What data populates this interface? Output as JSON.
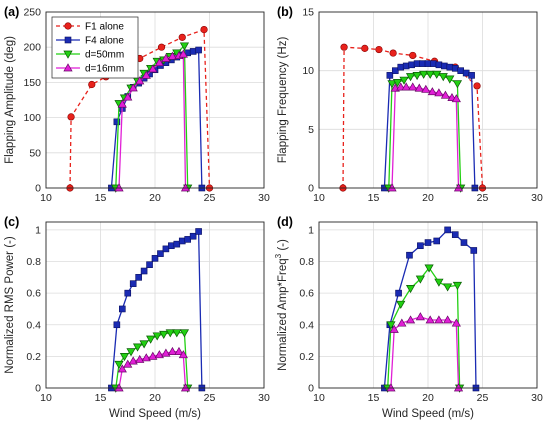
{
  "colors": {
    "F1 alone": "#e8221c",
    "F4 alone": "#1a2bb3",
    "d=50mm": "#22d012",
    "d=16mm": "#e11fd6"
  },
  "chart_data": [
    {
      "panel": "(a)",
      "type": "line",
      "xlabel": "",
      "ylabel": "Flapping Amplitude (deg)",
      "xlim": [
        10,
        30
      ],
      "ylim": [
        0,
        250
      ],
      "xticks": [
        "10",
        "15",
        "20",
        "25",
        "30"
      ],
      "yticks": [
        "0",
        "50",
        "100",
        "150",
        "200",
        "250"
      ],
      "grid": true,
      "legend": {
        "placement": "top-left",
        "entries": [
          "F1 alone",
          "F4 alone",
          "d=50mm",
          "d=16mm"
        ]
      },
      "series": [
        {
          "name": "F1 alone",
          "x": [
            12.2,
            12.3,
            14.2,
            15.5,
            16.8,
            18.6,
            20.6,
            22.5,
            24.5,
            25.0
          ],
          "y": [
            0,
            101,
            147,
            158,
            168,
            184,
            200,
            214,
            225,
            0
          ]
        },
        {
          "name": "F4 alone",
          "x": [
            16.0,
            16.5,
            17.0,
            17.5,
            18.0,
            18.5,
            19.0,
            19.5,
            20.0,
            20.5,
            21.0,
            21.5,
            22.0,
            22.5,
            23.0,
            23.5,
            24.0,
            24.3
          ],
          "y": [
            0,
            94,
            113,
            130,
            143,
            149,
            156,
            162,
            168,
            174,
            178,
            182,
            186,
            189,
            192,
            194,
            196,
            0
          ]
        },
        {
          "name": "d=50mm",
          "x": [
            16.4,
            16.7,
            17.2,
            17.8,
            18.4,
            19.0,
            19.6,
            20.2,
            20.8,
            21.4,
            22.0,
            22.7,
            23.0
          ],
          "y": [
            0,
            120,
            128,
            142,
            152,
            163,
            170,
            180,
            182,
            187,
            192,
            202,
            0
          ]
        },
        {
          "name": "d=16mm",
          "x": [
            16.7,
            17.0,
            17.5,
            18.0,
            18.6,
            19.2,
            19.8,
            20.4,
            21.0,
            21.6,
            22.2,
            22.6,
            22.8
          ],
          "y": [
            0,
            119,
            129,
            142,
            152,
            160,
            169,
            178,
            184,
            187,
            188,
            190,
            0
          ]
        }
      ]
    },
    {
      "panel": "(b)",
      "type": "line",
      "xlabel": "",
      "ylabel": "Flapping Frequency (Hz)",
      "xlim": [
        10,
        30
      ],
      "ylim": [
        0,
        15
      ],
      "xticks": [
        "10",
        "15",
        "20",
        "25",
        "30"
      ],
      "yticks": [
        "0",
        "5",
        "10",
        "15"
      ],
      "grid": true,
      "series": [
        {
          "name": "F1 alone",
          "x": [
            12.2,
            12.3,
            14.2,
            15.5,
            16.8,
            18.6,
            20.6,
            22.5,
            24.5,
            25.0
          ],
          "y": [
            0,
            12.0,
            11.9,
            11.8,
            11.5,
            11.3,
            10.8,
            10.3,
            8.7,
            0
          ]
        },
        {
          "name": "F4 alone",
          "x": [
            16.0,
            16.5,
            17.0,
            17.5,
            18.0,
            18.5,
            19.0,
            19.5,
            20.0,
            20.5,
            21.0,
            21.5,
            22.0,
            22.5,
            23.0,
            23.5,
            24.0,
            24.3
          ],
          "y": [
            0,
            9.6,
            10.0,
            10.3,
            10.4,
            10.5,
            10.6,
            10.6,
            10.6,
            10.6,
            10.5,
            10.4,
            10.3,
            10.2,
            10.0,
            9.8,
            9.6,
            0
          ]
        },
        {
          "name": "d=50mm",
          "x": [
            16.4,
            16.7,
            17.2,
            17.8,
            18.4,
            19.0,
            19.6,
            20.2,
            20.8,
            21.4,
            22.0,
            22.7,
            23.0
          ],
          "y": [
            0,
            8.9,
            9.0,
            9.2,
            9.5,
            9.6,
            9.7,
            9.7,
            9.7,
            9.5,
            9.3,
            8.9,
            0
          ]
        },
        {
          "name": "d=16mm",
          "x": [
            16.7,
            17.0,
            17.5,
            18.0,
            18.6,
            19.2,
            19.8,
            20.4,
            21.0,
            21.6,
            22.2,
            22.6,
            22.8
          ],
          "y": [
            0,
            8.5,
            8.6,
            8.6,
            8.6,
            8.5,
            8.4,
            8.2,
            8.1,
            7.9,
            7.7,
            7.6,
            0
          ]
        }
      ]
    },
    {
      "panel": "(c)",
      "type": "line",
      "xlabel": "Wind Speed (m/s)",
      "ylabel": "Normalized RMS Power (-)",
      "xlim": [
        10,
        30
      ],
      "ylim": [
        0,
        1.05
      ],
      "xticks": [
        "10",
        "15",
        "20",
        "25",
        "30"
      ],
      "yticks": [
        "0",
        "0.2",
        "0.4",
        "0.6",
        "0.8",
        "1"
      ],
      "grid": true,
      "series": [
        {
          "name": "F4 alone",
          "x": [
            16.0,
            16.5,
            17.0,
            17.5,
            18.0,
            18.5,
            19.0,
            19.5,
            20.0,
            20.5,
            21.0,
            21.5,
            22.0,
            22.5,
            23.0,
            23.5,
            24.0,
            24.3
          ],
          "y": [
            0,
            0.4,
            0.5,
            0.6,
            0.66,
            0.7,
            0.74,
            0.78,
            0.82,
            0.85,
            0.88,
            0.9,
            0.91,
            0.93,
            0.94,
            0.96,
            0.99,
            0
          ]
        },
        {
          "name": "d=50mm",
          "x": [
            16.4,
            16.7,
            17.2,
            17.8,
            18.4,
            19.0,
            19.6,
            20.2,
            20.8,
            21.4,
            22.0,
            22.7,
            23.0
          ],
          "y": [
            0,
            0.15,
            0.2,
            0.23,
            0.26,
            0.28,
            0.31,
            0.33,
            0.34,
            0.35,
            0.35,
            0.35,
            0
          ]
        },
        {
          "name": "d=16mm",
          "x": [
            16.7,
            17.0,
            17.5,
            18.0,
            18.6,
            19.2,
            19.8,
            20.4,
            21.0,
            21.6,
            22.2,
            22.6,
            22.8
          ],
          "y": [
            0,
            0.12,
            0.15,
            0.17,
            0.18,
            0.19,
            0.2,
            0.21,
            0.22,
            0.23,
            0.23,
            0.21,
            0
          ]
        }
      ]
    },
    {
      "panel": "(d)",
      "type": "line",
      "xlabel": "Wind Speed (m/s)",
      "ylabel_main": "Normalized Amp*Freq",
      "ylabel_sup": "3",
      "ylabel_tail": " (-)",
      "xlim": [
        10,
        30
      ],
      "ylim": [
        0,
        1.05
      ],
      "xticks": [
        "10",
        "15",
        "20",
        "25",
        "30"
      ],
      "yticks": [
        "0",
        "0.2",
        "0.4",
        "0.6",
        "0.8",
        "1"
      ],
      "grid": true,
      "series": [
        {
          "name": "F4 alone",
          "x": [
            16.0,
            16.5,
            17.3,
            18.3,
            19.3,
            20.0,
            20.8,
            21.8,
            22.5,
            23.3,
            24.2,
            24.4
          ],
          "y": [
            0,
            0.4,
            0.6,
            0.84,
            0.9,
            0.92,
            0.93,
            1.0,
            0.97,
            0.92,
            0.87,
            0
          ]
        },
        {
          "name": "d=50mm",
          "x": [
            16.3,
            16.6,
            17.5,
            18.4,
            19.3,
            20.1,
            21.0,
            21.8,
            22.7,
            22.9
          ],
          "y": [
            0,
            0.4,
            0.53,
            0.63,
            0.69,
            0.76,
            0.67,
            0.64,
            0.65,
            0
          ]
        },
        {
          "name": "d=16mm",
          "x": [
            16.6,
            16.9,
            17.6,
            18.4,
            19.3,
            20.2,
            21.0,
            21.8,
            22.6,
            22.8
          ],
          "y": [
            0,
            0.37,
            0.41,
            0.43,
            0.45,
            0.43,
            0.43,
            0.43,
            0.41,
            0
          ]
        }
      ]
    }
  ]
}
